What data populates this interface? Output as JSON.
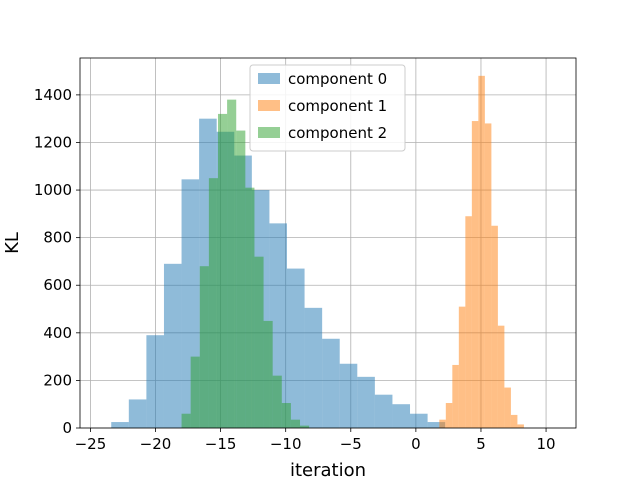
{
  "chart_data": {
    "type": "histogram",
    "title": "",
    "xlabel": "iteration",
    "ylabel": "KL",
    "xlim": [
      -25.8,
      12.3
    ],
    "ylim": [
      0,
      1555
    ],
    "xticks": [
      -25,
      -20,
      -15,
      -10,
      -5,
      0,
      5,
      10
    ],
    "xtick_labels": [
      "−25",
      "−20",
      "−15",
      "−10",
      "−5",
      "0",
      "5",
      "10"
    ],
    "yticks": [
      0,
      200,
      400,
      600,
      800,
      1000,
      1200,
      1400
    ],
    "ytick_labels": [
      "0",
      "200",
      "400",
      "600",
      "800",
      "1000",
      "1200",
      "1400"
    ],
    "grid": true,
    "legend_position": "upper-center",
    "series": [
      {
        "name": "component 0",
        "color": "#1f77b4",
        "alpha": 0.5,
        "bin_edges": [
          -23.4,
          -22.05,
          -20.7,
          -19.35,
          -18.0,
          -16.65,
          -15.3,
          -13.95,
          -12.6,
          -11.25,
          -9.9,
          -8.55,
          -7.2,
          -5.85,
          -4.5,
          -3.15,
          -1.8,
          -0.45,
          0.9,
          2.25
        ],
        "counts": [
          25,
          120,
          390,
          690,
          1045,
          1300,
          1245,
          1145,
          1000,
          860,
          670,
          505,
          375,
          270,
          215,
          140,
          100,
          60,
          25
        ]
      },
      {
        "name": "component 1",
        "color": "#ff7f0e",
        "alpha": 0.5,
        "bin_edges": [
          1.8,
          2.3,
          2.8,
          3.3,
          3.8,
          4.3,
          4.8,
          5.3,
          5.8,
          6.3,
          6.8,
          7.3,
          7.8,
          8.3
        ],
        "counts": [
          35,
          105,
          265,
          510,
          890,
          1290,
          1480,
          1280,
          850,
          430,
          170,
          55,
          15
        ]
      },
      {
        "name": "component 2",
        "color": "#2ca02c",
        "alpha": 0.5,
        "bin_edges": [
          -18.0,
          -17.3,
          -16.6,
          -15.9,
          -15.2,
          -14.5,
          -13.8,
          -13.1,
          -12.4,
          -11.7,
          -11.0,
          -10.3,
          -9.6,
          -8.9,
          -8.2
        ],
        "counts": [
          60,
          300,
          680,
          1050,
          1320,
          1380,
          1250,
          1010,
          720,
          450,
          220,
          105,
          35,
          10
        ]
      }
    ]
  }
}
